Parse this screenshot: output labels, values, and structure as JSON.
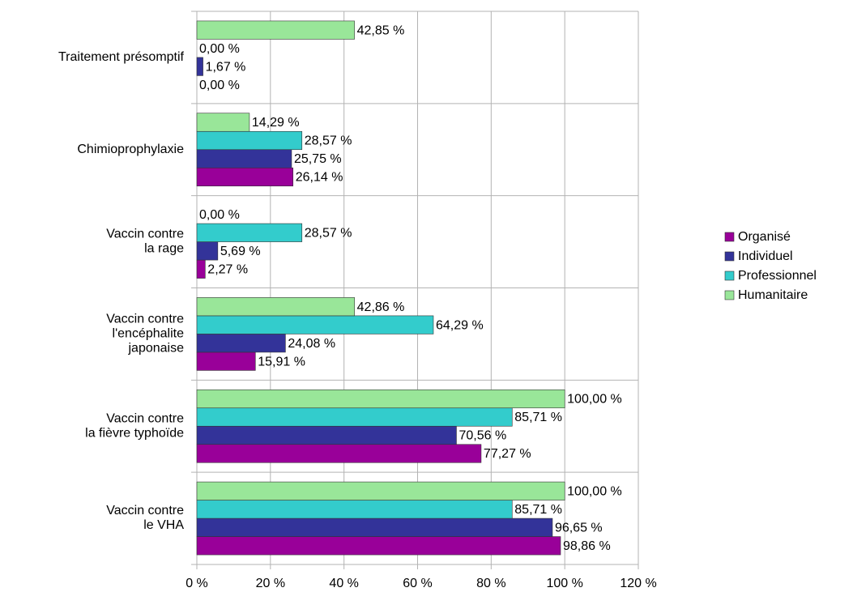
{
  "chart_data": {
    "type": "bar",
    "orientation": "horizontal",
    "categories": [
      "Traitement présomptif",
      "Chimioprophylaxie",
      "Vaccin contre\nla rage",
      "Vaccin contre\nl'encéphalite\njaponaise",
      "Vaccin contre\nla fièvre typhoïde",
      "Vaccin contre\nle VHA"
    ],
    "series": [
      {
        "name": "Organisé",
        "color": "#990099",
        "values": [
          0,
          26.14,
          2.27,
          15.91,
          77.27,
          98.86
        ],
        "value_labels": [
          "0,00 %",
          "26,14 %",
          "2,27 %",
          "15,91 %",
          "77,27 %",
          "98,86 %"
        ]
      },
      {
        "name": "Individuel",
        "color": "#333399",
        "values": [
          1.67,
          25.75,
          5.69,
          24.08,
          70.56,
          96.65
        ],
        "value_labels": [
          "1,67 %",
          "25,75 %",
          "5,69 %",
          "24,08 %",
          "70,56 %",
          "96,65 %"
        ]
      },
      {
        "name": "Professionnel",
        "color": "#33cccc",
        "values": [
          0,
          28.57,
          28.57,
          64.29,
          85.71,
          85.71
        ],
        "value_labels": [
          "0,00 %",
          "28,57 %",
          "28,57 %",
          "64,29 %",
          "85,71 %",
          "85,71 %"
        ]
      },
      {
        "name": "Humanitaire",
        "color": "#99e699",
        "values": [
          42.85,
          14.29,
          0,
          42.86,
          100,
          100
        ],
        "value_labels": [
          "42,85 %",
          "14,29 %",
          "0,00 %",
          "42,86 %",
          "100,00 %",
          "100,00 %"
        ]
      }
    ],
    "xlim": [
      0,
      120
    ],
    "xticks": [
      {
        "value": 0,
        "label": "0 %"
      },
      {
        "value": 20,
        "label": "20 %"
      },
      {
        "value": 40,
        "label": "40 %"
      },
      {
        "value": 60,
        "label": "60 %"
      },
      {
        "value": 80,
        "label": "80 %"
      },
      {
        "value": 100,
        "label": "100 %"
      },
      {
        "value": 120,
        "label": "120 %"
      }
    ],
    "grid": true,
    "legend": "right"
  }
}
